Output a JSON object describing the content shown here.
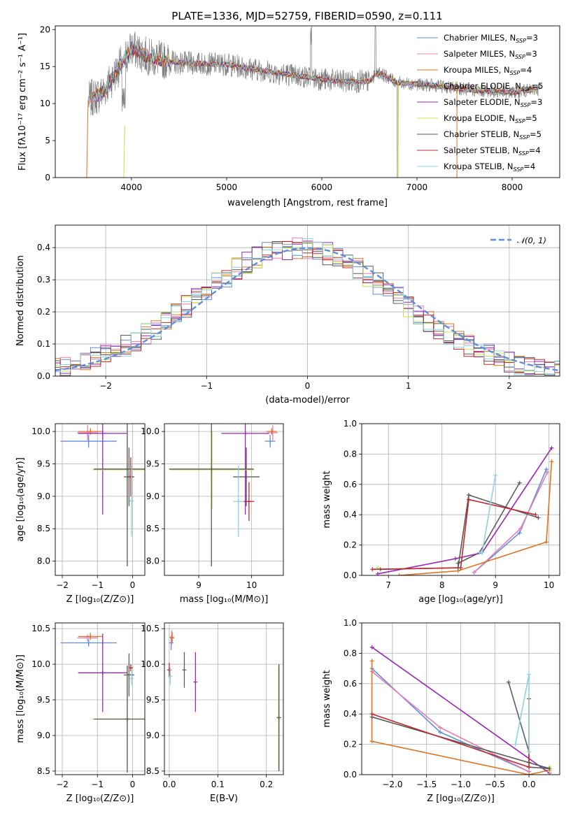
{
  "colors": [
    "#5f8fd8",
    "#e57fb3",
    "#df7420",
    "#5e5e5e",
    "#9b26b6",
    "#c5e449",
    "#575757",
    "#c0282b",
    "#8ed1e0"
  ],
  "chart_data": [
    {
      "id": "spectrum",
      "type": "line",
      "title": "PLATE=1336, MJD=52759, FIBERID=0590, z=0.111",
      "xlabel": "wavelength [Angstrom, rest frame]",
      "ylabel": "Flux [fλ10⁻¹⁷ erg cm⁻² s⁻¹ A⁻¹]",
      "xlim": [
        3200,
        8500
      ],
      "ylim": [
        0,
        20.5
      ],
      "xticks": [
        4000,
        5000,
        6000,
        7000,
        8000
      ],
      "yticks": [
        0,
        5,
        10,
        15,
        20
      ],
      "grid": false,
      "legend_position": "top-right",
      "data_color": "#808080",
      "data_continuum": [
        [
          3550,
          10.5
        ],
        [
          3700,
          11.5
        ],
        [
          3850,
          14.5
        ],
        [
          4000,
          17.5
        ],
        [
          4200,
          16.2
        ],
        [
          4500,
          15.5
        ],
        [
          5000,
          15.3
        ],
        [
          5500,
          14.2
        ],
        [
          6000,
          13.3
        ],
        [
          6200,
          13.0
        ],
        [
          6500,
          13.0
        ],
        [
          6600,
          14.2
        ],
        [
          6800,
          12.8
        ],
        [
          7200,
          12.4
        ],
        [
          7600,
          11.8
        ],
        [
          8000,
          11.5
        ],
        [
          8300,
          12.0
        ]
      ],
      "data_notes": "noisy observed spectrum (grey)",
      "series": [
        {
          "name": "Chabrier MILES, N_SSP=3"
        },
        {
          "name": "Salpeter MILES, N_SSP=3"
        },
        {
          "name": "Kroupa MILES, N_SSP=4"
        },
        {
          "name": "Chabrier ELODIE, N_SSP=5"
        },
        {
          "name": "Salpeter ELODIE, N_SSP=3"
        },
        {
          "name": "Kroupa ELODIE, N_SSP=5"
        },
        {
          "name": "Chabrier STELIB, N_SSP=5"
        },
        {
          "name": "Salpeter STELIB, N_SSP=4"
        },
        {
          "name": "Kroupa STELIB, N_SSP=4"
        }
      ],
      "legend_labels": [
        {
          "base": "Chabrier MILES, N",
          "sub": "SSP",
          "tail": "=3"
        },
        {
          "base": "Salpeter MILES, N",
          "sub": "SSP",
          "tail": "=3"
        },
        {
          "base": "Kroupa MILES, N",
          "sub": "SSP",
          "tail": "=4"
        },
        {
          "base": "Chabrier ELODIE, N",
          "sub": "SSP",
          "tail": "=5"
        },
        {
          "base": "Salpeter ELODIE, N",
          "sub": "SSP",
          "tail": "=3"
        },
        {
          "base": "Kroupa ELODIE, N",
          "sub": "SSP",
          "tail": "=5"
        },
        {
          "base": "Chabrier STELIB, N",
          "sub": "SSP",
          "tail": "=5"
        },
        {
          "base": "Salpeter STELIB, N",
          "sub": "SSP",
          "tail": "=4"
        },
        {
          "base": "Kroupa STELIB, N",
          "sub": "SSP",
          "tail": "=4"
        }
      ]
    },
    {
      "id": "residuals",
      "type": "line",
      "xlabel": "(data-model)/error",
      "ylabel": "Normed distribution",
      "xlim": [
        -2.5,
        2.5
      ],
      "ylim": [
        0,
        0.47
      ],
      "xticks": [
        -2,
        -1,
        0,
        1,
        2
      ],
      "yticks": [
        0.0,
        0.1,
        0.2,
        0.3,
        0.4
      ],
      "grid": true,
      "legend_position": "top-right",
      "legend_label": "𝒩(0, 1)",
      "gaussian": {
        "mean": 0,
        "sigma": 1,
        "color": "#5f8fd8"
      },
      "bin_width": 0.1,
      "histogram_note": "9 step histograms approximately following N(0,1)"
    },
    {
      "id": "age-vs-Z",
      "type": "scatter",
      "xlabel": "Z [log₁₀(Z/Z⊙)]",
      "ylabel": "age  [log₁₀(age/yr)]",
      "xlim": [
        -2.2,
        0.35
      ],
      "ylim": [
        7.78,
        10.12
      ],
      "xticks": [
        -2,
        -1,
        0
      ],
      "yticks": [
        8.0,
        8.5,
        9.0,
        9.5,
        10.0
      ],
      "grid": true,
      "points": [
        {
          "x": -1.25,
          "y": 9.85,
          "xerr": 0.8,
          "yerr": 0.1
        },
        {
          "x": -1.28,
          "y": 9.98,
          "xerr": 0.3,
          "yerr": 0.12
        },
        {
          "x": -1.2,
          "y": 10.0,
          "xerr": 0.35,
          "yerr": 0.05
        },
        {
          "x": -0.1,
          "y": 9.3,
          "xerr": 0.15,
          "yerr": 0.45
        },
        {
          "x": -0.85,
          "y": 9.97,
          "xerr": 0.7,
          "yerr": 1.25
        },
        {
          "x": -0.15,
          "y": 9.41,
          "xerr": 1.0,
          "yerr": 0.6
        },
        {
          "x": -0.15,
          "y": 9.42,
          "xerr": 0.95,
          "yerr": 1.5
        },
        {
          "x": -0.05,
          "y": 9.3,
          "xerr": 0.05,
          "yerr": 0.3
        },
        {
          "x": -0.03,
          "y": 8.93,
          "xerr": 0.05,
          "yerr": 0.55
        }
      ]
    },
    {
      "id": "age-vs-mass",
      "type": "scatter",
      "xlabel": "mass [log₁₀(M/M⊙)]",
      "ylabel": "",
      "xlim": [
        8.35,
        10.6
      ],
      "ylim": [
        7.78,
        10.12
      ],
      "xticks": [
        9,
        10
      ],
      "yticks": [
        8.0,
        8.5,
        9.0,
        9.5,
        10.0
      ],
      "grid": true,
      "points": [
        {
          "x": 10.35,
          "y": 9.85,
          "xerr": 0.1,
          "yerr": 0.1
        },
        {
          "x": 10.4,
          "y": 9.98,
          "xerr": 0.1,
          "yerr": 0.12
        },
        {
          "x": 10.38,
          "y": 10.0,
          "xerr": 0.1,
          "yerr": 0.05
        },
        {
          "x": 9.9,
          "y": 9.3,
          "xerr": 0.25,
          "yerr": 0.45
        },
        {
          "x": 9.88,
          "y": 9.97,
          "xerr": 0.45,
          "yerr": 1.25
        },
        {
          "x": 9.25,
          "y": 9.41,
          "xerr": 0.8,
          "yerr": 0.6
        },
        {
          "x": 9.24,
          "y": 9.42,
          "xerr": 0.8,
          "yerr": 1.5
        },
        {
          "x": 9.95,
          "y": 8.92,
          "xerr": 0.1,
          "yerr": 0.3
        },
        {
          "x": 9.75,
          "y": 8.92,
          "xerr": 0.1,
          "yerr": 0.55
        }
      ]
    },
    {
      "id": "weight-vs-age",
      "type": "line",
      "xlabel": "age  [log₁₀(age/yr)]",
      "ylabel": "mass weight",
      "xlim": [
        6.5,
        10.2
      ],
      "ylim": [
        0,
        1
      ],
      "xticks": [
        7,
        8,
        9,
        10
      ],
      "yticks": [
        0.0,
        0.2,
        0.4,
        0.6,
        0.8,
        1.0
      ],
      "grid": true,
      "series": [
        {
          "x": [
            8.6,
            9.45,
            9.95
          ],
          "y": [
            0.02,
            0.28,
            0.7
          ]
        },
        {
          "x": [
            8.6,
            9.47,
            9.97
          ],
          "y": [
            0.02,
            0.31,
            0.68
          ]
        },
        {
          "x": [
            7.2,
            8.3,
            9.95,
            10.05
          ],
          "y": [
            0.0,
            0.03,
            0.22,
            0.75
          ]
        },
        {
          "x": [
            8.3,
            8.7,
            9.45
          ],
          "y": [
            0.08,
            0.15,
            0.61
          ]
        },
        {
          "x": [
            6.8,
            8.25,
            8.75,
            10.05
          ],
          "y": [
            0.01,
            0.11,
            0.15,
            0.84
          ]
        },
        {
          "x": 6.8,
          "y": 0.05
        },
        {
          "x": [
            6.85,
            8.3,
            8.5,
            9.8
          ],
          "y": [
            0.04,
            0.05,
            0.53,
            0.38
          ]
        },
        {
          "x": [
            6.7,
            8.35,
            8.5,
            9.75
          ],
          "y": [
            0.04,
            0.05,
            0.5,
            0.4
          ]
        },
        {
          "x": [
            8.7,
            8.75,
            9.0
          ],
          "y": [
            0.15,
            0.15,
            0.66
          ]
        }
      ]
    },
    {
      "id": "mass-vs-Z",
      "type": "scatter",
      "xlabel": "Z [log₁₀(Z/Z⊙)]",
      "ylabel": "mass [log₁₀(M/M⊙)]",
      "xlim": [
        -2.2,
        0.35
      ],
      "ylim": [
        8.45,
        10.58
      ],
      "xticks": [
        -2,
        -1,
        0
      ],
      "yticks": [
        8.5,
        9.0,
        9.5,
        10.0,
        10.5
      ],
      "grid": true,
      "points": [
        {
          "x": -1.25,
          "y": 10.3,
          "xerr": 0.8,
          "yerr": 0.05
        },
        {
          "x": -1.28,
          "y": 10.37,
          "xerr": 0.3,
          "yerr": 0.05
        },
        {
          "x": -1.2,
          "y": 10.39,
          "xerr": 0.35,
          "yerr": 0.05
        },
        {
          "x": -0.1,
          "y": 9.85,
          "xerr": 0.15,
          "yerr": 0.3
        },
        {
          "x": -0.85,
          "y": 9.88,
          "xerr": 0.7,
          "yerr": 0.55
        },
        {
          "x": -0.15,
          "y": 9.23,
          "xerr": 1.0,
          "yerr": 0.75
        },
        {
          "x": -0.15,
          "y": 9.23,
          "xerr": 0.95,
          "yerr": 0.75
        },
        {
          "x": -0.05,
          "y": 9.95,
          "xerr": 0.05,
          "yerr": 0.05
        },
        {
          "x": -0.03,
          "y": 9.8,
          "xerr": 0.05,
          "yerr": 0.1
        }
      ]
    },
    {
      "id": "mass-vs-EBV",
      "type": "scatter",
      "xlabel": "E(B-V)",
      "ylabel": "",
      "xlim": [
        -0.01,
        0.235
      ],
      "ylim": [
        8.45,
        10.58
      ],
      "xticks": [
        0.0,
        0.1,
        0.2
      ],
      "yticks": [
        8.5,
        9.0,
        9.5,
        10.0,
        10.5
      ],
      "grid": true,
      "points": [
        {
          "x": 0.004,
          "y": 10.3,
          "xerr": 0.0,
          "yerr": 0.1
        },
        {
          "x": 0.005,
          "y": 10.38,
          "xerr": 0.0,
          "yerr": 0.1
        },
        {
          "x": 0.006,
          "y": 10.37,
          "xerr": 0.0,
          "yerr": 0.08
        },
        {
          "x": 0.031,
          "y": 9.92,
          "xerr": 0.0,
          "yerr": 0.25
        },
        {
          "x": 0.054,
          "y": 9.75,
          "xerr": 0.0,
          "yerr": 0.42
        },
        {
          "x": 0.225,
          "y": 9.25,
          "xerr": 0.0,
          "yerr": 0.72
        },
        {
          "x": 0.226,
          "y": 9.25,
          "xerr": 0.0,
          "yerr": 0.75
        },
        {
          "x": 0.0,
          "y": 9.92,
          "xerr": 0.0,
          "yerr": 0.1
        },
        {
          "x": 0.002,
          "y": 9.83,
          "xerr": 0.0,
          "yerr": 0.12
        }
      ]
    },
    {
      "id": "weight-vs-Z",
      "type": "line",
      "xlabel": "Z [log₁₀(Z/Z⊙)]",
      "ylabel": "mass weight",
      "xlim": [
        -2.45,
        0.45
      ],
      "ylim": [
        0,
        1
      ],
      "xticks": [
        -2.0,
        -1.5,
        -1.0,
        -0.5,
        0.0
      ],
      "yticks": [
        0.0,
        0.2,
        0.4,
        0.6,
        0.8,
        1.0
      ],
      "grid": true,
      "series": [
        {
          "x": [
            -2.3,
            -1.3,
            0.0
          ],
          "y": [
            0.7,
            0.28,
            0.02
          ]
        },
        {
          "x": [
            -2.3,
            -1.3,
            0.0
          ],
          "y": [
            0.68,
            0.31,
            0.02
          ]
        },
        {
          "x": [
            -2.3,
            -2.3,
            0.0,
            0.3
          ],
          "y": [
            0.75,
            0.22,
            0.0,
            0.03
          ]
        },
        {
          "x": [
            -0.3,
            0.0,
            0.0
          ],
          "y": [
            0.61,
            0.15,
            0.08
          ]
        },
        {
          "x": [
            -2.3,
            0.3
          ],
          "y": [
            0.84,
            0.01
          ]
        },
        {
          "x": [
            0.3,
            0.3
          ],
          "y": [
            0.05,
            0.02
          ]
        },
        {
          "x": [
            -2.3,
            0.3,
            0.0
          ],
          "y": [
            0.38,
            0.04,
            0.05
          ]
        },
        {
          "x": [
            -2.3,
            0.0,
            0.0
          ],
          "y": [
            0.4,
            0.05,
            0.5
          ]
        },
        {
          "x": [
            -0.2,
            0.0,
            0.0
          ],
          "y": [
            0.2,
            0.66,
            0.15
          ]
        }
      ]
    }
  ]
}
